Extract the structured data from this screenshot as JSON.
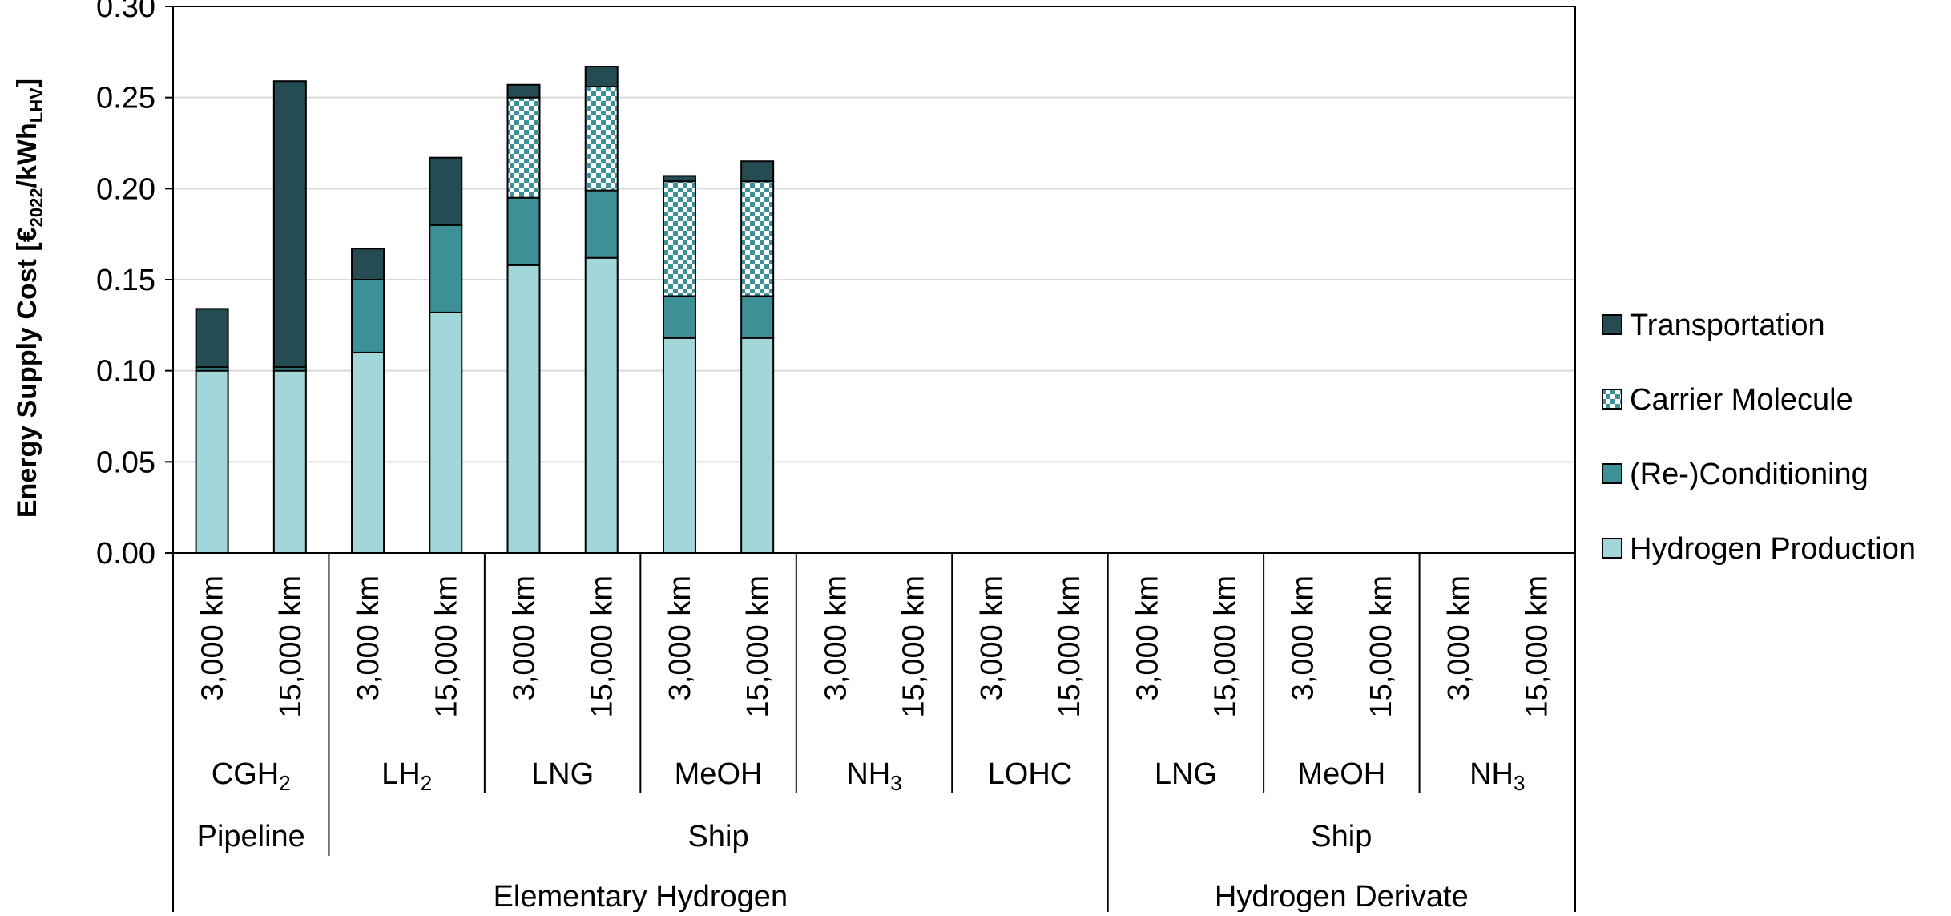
{
  "chart_data": {
    "type": "bar",
    "stacked": true,
    "ylabel_parts": [
      "Energy Supply Cost [€",
      "2022",
      "/kWh",
      "LHV",
      "]"
    ],
    "ylim": [
      0,
      0.3
    ],
    "yticks": [
      "0.00",
      "0.05",
      "0.10",
      "0.15",
      "0.20",
      "0.25",
      "0.30"
    ],
    "grid": true,
    "legend_position": "right",
    "categories": [
      "3,000 km",
      "15,000 km",
      "3,000 km",
      "15,000 km",
      "3,000 km",
      "15,000 km",
      "3,000 km",
      "15,000 km",
      "3,000 km",
      "15,000 km",
      "3,000 km",
      "15,000 km",
      "3,000 km",
      "15,000 km",
      "3,000 km",
      "15,000 km",
      "3,000 km",
      "15,000 km"
    ],
    "series": [
      {
        "name": "Hydrogen Production",
        "color": "#a2d6d9",
        "pattern": "solid",
        "values": [
          0.1,
          0.1,
          0.11,
          0.132,
          0.158,
          0.162,
          0.118,
          0.118,
          null,
          null,
          null,
          null,
          null,
          null,
          null,
          null,
          null,
          null
        ]
      },
      {
        "name": "(Re-)Conditioning",
        "color": "#3d9196",
        "pattern": "solid",
        "values": [
          0.002,
          0.002,
          0.04,
          0.048,
          0.037,
          0.037,
          0.023,
          0.023,
          null,
          null,
          null,
          null,
          null,
          null,
          null,
          null,
          null,
          null
        ]
      },
      {
        "name": "Carrier Molecule",
        "color": "#3d9196",
        "pattern": "checker",
        "values": [
          0,
          0,
          0,
          0,
          0.055,
          0.057,
          0.063,
          0.063,
          null,
          null,
          null,
          null,
          null,
          null,
          null,
          null,
          null,
          null
        ]
      },
      {
        "name": "Transportation",
        "color": "#244c52",
        "pattern": "solid",
        "values": [
          0.032,
          0.157,
          0.017,
          0.037,
          0.007,
          0.011,
          0.003,
          0.011,
          null,
          null,
          null,
          null,
          null,
          null,
          null,
          null,
          null,
          null
        ]
      }
    ],
    "carriers": [
      {
        "label": "CGH",
        "sub": "2"
      },
      {
        "label": "LH",
        "sub": "2"
      },
      {
        "label": "LNG",
        "sub": ""
      },
      {
        "label": "MeOH",
        "sub": ""
      },
      {
        "label": "NH",
        "sub": "3"
      },
      {
        "label": "LOHC",
        "sub": ""
      },
      {
        "label": "LNG",
        "sub": ""
      },
      {
        "label": "MeOH",
        "sub": ""
      },
      {
        "label": "NH",
        "sub": "3"
      }
    ],
    "modes": [
      "Pipeline",
      "Ship",
      "Ship"
    ],
    "groups": [
      "Elementary Hydrogen",
      "Hydrogen Derivate"
    ]
  }
}
